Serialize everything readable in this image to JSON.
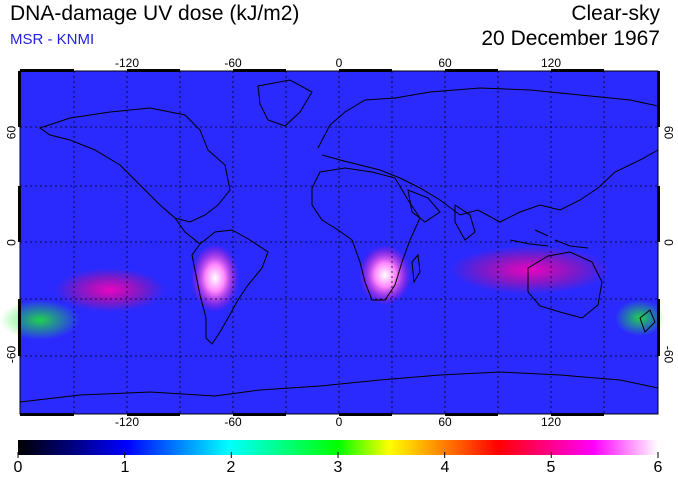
{
  "header": {
    "title": "DNA-damage UV dose (kJ/m2)",
    "subtitle": "MSR - KNMI",
    "mode": "Clear-sky",
    "date": "20 December 1967"
  },
  "map": {
    "longitude_ticks": [
      "-120",
      "-60",
      "0",
      "60",
      "120"
    ],
    "latitude_ticks": [
      "60",
      "0",
      "-60"
    ]
  },
  "colorbar": {
    "ticks": [
      "0",
      "1",
      "2",
      "3",
      "4",
      "5",
      "6"
    ],
    "colors": [
      "#000000",
      "#0000ff",
      "#00ffff",
      "#00ff00",
      "#ffff00",
      "#ff0000",
      "#ff00ff",
      "#ffffff"
    ]
  }
}
